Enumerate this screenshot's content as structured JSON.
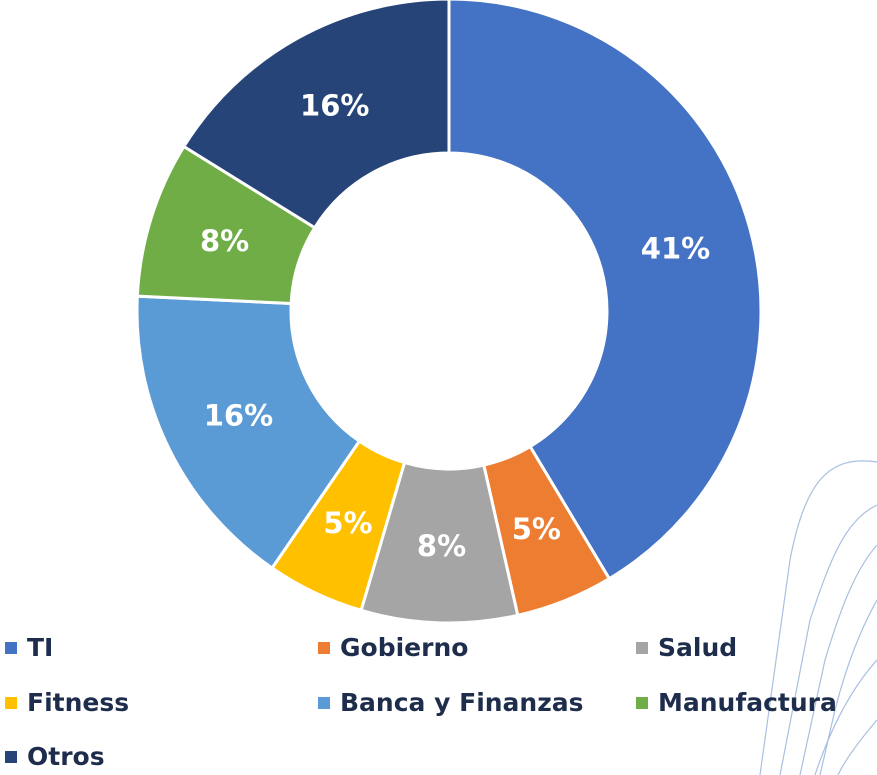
{
  "chart_data": {
    "type": "pie",
    "categories": [
      "TI",
      "Gobierno",
      "Salud",
      "Fitness",
      "Banca y Finanzas",
      "Manufactura",
      "Otros"
    ],
    "values": [
      41,
      5,
      8,
      5,
      16,
      8,
      16
    ],
    "value_labels": [
      "41%",
      "5%",
      "8%",
      "5%",
      "16%",
      "8%",
      "16%"
    ],
    "colors": [
      "#4472c4",
      "#ed7d31",
      "#a5a5a5",
      "#ffc000",
      "#5b9bd5",
      "#70ad47",
      "#264478"
    ]
  }
}
